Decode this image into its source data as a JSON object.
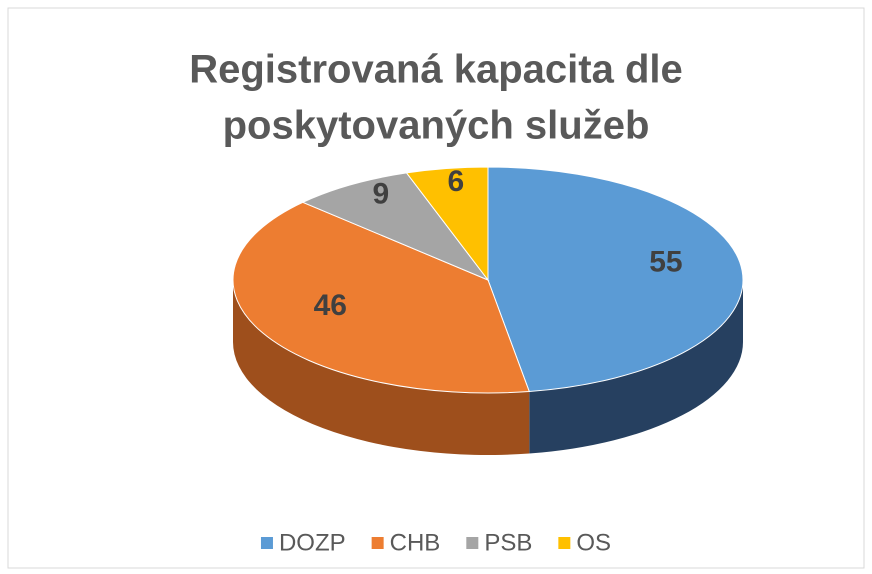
{
  "chart_data": {
    "type": "pie3d",
    "title": [
      "Registrovaná kapacita dle",
      "poskytovaných služeb"
    ],
    "categories": [
      "DOZP",
      "CHB",
      "PSB",
      "OS"
    ],
    "values": [
      55,
      46,
      9,
      6
    ],
    "colors": [
      "#5b9bd5",
      "#ed7d31",
      "#a5a5a5",
      "#ffc000"
    ],
    "side_colors": [
      "#264060",
      "#9e4f1c",
      "#6b6b6b",
      "#a67c00"
    ],
    "legend": "bottom"
  }
}
